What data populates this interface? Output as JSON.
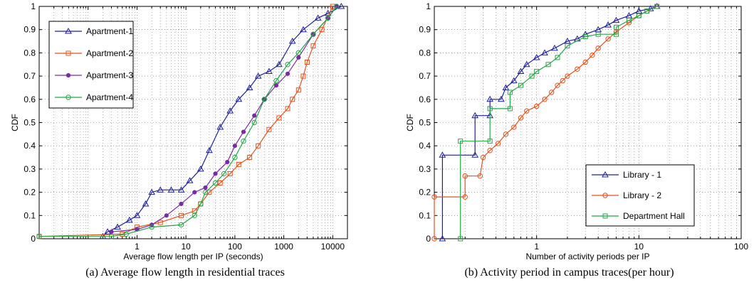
{
  "chart_data": [
    {
      "type": "line",
      "caption": "(a) Average flow length in residential traces",
      "xlabel": "Average flow length per IP (seconds)",
      "ylabel": "CDF",
      "xscale": "log",
      "xlim": [
        0.01,
        20000
      ],
      "ylim": [
        0,
        1
      ],
      "xticks": [
        1,
        10,
        100,
        1000,
        10000
      ],
      "xtick_labels": [
        "1",
        "10",
        "100",
        "1000",
        "10000"
      ],
      "yticks": [
        0,
        0.1,
        0.2,
        0.3,
        0.4,
        0.5,
        0.6,
        0.7,
        0.8,
        0.9,
        1
      ],
      "ytick_labels": [
        "0",
        "0.1",
        "0.2",
        "0.3",
        "0.4",
        "0.5",
        "0.6",
        "0.7",
        "0.8",
        "0.9",
        "1"
      ],
      "grid": true,
      "legend_position": "top-left",
      "series": [
        {
          "name": "Apartment-1",
          "color": "#1f1f9e",
          "marker": "triangle",
          "x": [
            0.2,
            0.25,
            0.4,
            0.7,
            1.0,
            1.5,
            2.0,
            3.0,
            5.0,
            8.0,
            12,
            20,
            30,
            50,
            80,
            120,
            200,
            300,
            500,
            800,
            1500,
            2500,
            5000,
            8000,
            15000
          ],
          "y": [
            0.01,
            0.03,
            0.05,
            0.08,
            0.1,
            0.15,
            0.2,
            0.21,
            0.21,
            0.21,
            0.25,
            0.3,
            0.38,
            0.48,
            0.55,
            0.6,
            0.65,
            0.7,
            0.72,
            0.75,
            0.85,
            0.9,
            0.95,
            0.97,
            1.0
          ]
        },
        {
          "name": "Apartment-2",
          "color": "#e8501c",
          "marker": "square",
          "x": [
            0.01,
            0.5,
            1.0,
            3.0,
            8.0,
            15,
            20,
            30,
            50,
            80,
            120,
            200,
            300,
            500,
            800,
            1200,
            1500,
            2000,
            2500,
            3000,
            4000,
            6000,
            10000
          ],
          "y": [
            0.01,
            0.02,
            0.05,
            0.07,
            0.1,
            0.12,
            0.15,
            0.2,
            0.24,
            0.28,
            0.32,
            0.35,
            0.4,
            0.47,
            0.52,
            0.56,
            0.6,
            0.64,
            0.7,
            0.76,
            0.83,
            0.9,
            1.0
          ]
        },
        {
          "name": "Apartment-3",
          "color": "#7a2aa8",
          "marker": "star",
          "x": [
            0.3,
            1.0,
            2.0,
            4.0,
            8.0,
            15,
            25,
            40,
            70,
            100,
            150,
            250,
            400,
            700,
            1200,
            2000,
            4000,
            8000,
            12000
          ],
          "y": [
            0.03,
            0.04,
            0.06,
            0.1,
            0.15,
            0.2,
            0.22,
            0.28,
            0.33,
            0.4,
            0.46,
            0.53,
            0.6,
            0.66,
            0.71,
            0.78,
            0.88,
            0.95,
            1.0
          ]
        },
        {
          "name": "Apartment-4",
          "color": "#22a845",
          "marker": "circle",
          "x": [
            0.01,
            0.3,
            0.6,
            2.0,
            8.0,
            15,
            20,
            25,
            40,
            60,
            100,
            150,
            250,
            400,
            700,
            1200,
            2000,
            4000,
            8000,
            12000
          ],
          "y": [
            0.01,
            0.01,
            0.02,
            0.05,
            0.06,
            0.1,
            0.15,
            0.2,
            0.24,
            0.28,
            0.35,
            0.42,
            0.5,
            0.6,
            0.68,
            0.75,
            0.8,
            0.88,
            0.95,
            1.0
          ]
        }
      ]
    },
    {
      "type": "line",
      "caption": "(b) Activity period in campus traces(per hour)",
      "xlabel": "Number of activity periods per IP",
      "ylabel": "CDF",
      "xscale": "log",
      "xlim": [
        0.1,
        100
      ],
      "ylim": [
        0,
        1
      ],
      "xticks": [
        1,
        10,
        100
      ],
      "xtick_labels": [
        "1",
        "10",
        "100"
      ],
      "yticks": [
        0,
        0.1,
        0.2,
        0.3,
        0.4,
        0.5,
        0.6,
        0.7,
        0.8,
        0.9,
        1
      ],
      "ytick_labels": [
        "0",
        "0.1",
        "0.2",
        "0.3",
        "0.4",
        "0.5",
        "0.6",
        "0.7",
        "0.8",
        "0.9",
        "1"
      ],
      "grid": true,
      "legend_position": "bottom-right",
      "series": [
        {
          "name": "Library - 1",
          "color": "#1f1f9e",
          "marker": "triangle",
          "x": [
            0.12,
            0.12,
            0.25,
            0.25,
            0.35,
            0.35,
            0.45,
            0.5,
            0.6,
            0.7,
            0.8,
            1.0,
            1.2,
            1.5,
            2.0,
            2.5,
            3.0,
            4.0,
            5.0,
            6.0,
            8.0,
            10,
            13,
            15
          ],
          "y": [
            0.0,
            0.36,
            0.36,
            0.53,
            0.53,
            0.6,
            0.6,
            0.65,
            0.68,
            0.72,
            0.75,
            0.78,
            0.8,
            0.82,
            0.85,
            0.86,
            0.88,
            0.9,
            0.92,
            0.94,
            0.96,
            0.98,
            0.99,
            1.0
          ]
        },
        {
          "name": "Library - 2",
          "color": "#e8501c",
          "marker": "circle",
          "x": [
            0.1,
            0.1,
            0.2,
            0.2,
            0.28,
            0.3,
            0.35,
            0.42,
            0.5,
            0.6,
            0.7,
            0.8,
            1.0,
            1.2,
            1.4,
            1.6,
            1.8,
            2.0,
            2.5,
            3.0,
            3.5,
            4.0,
            5.0,
            6.0,
            8.0,
            10,
            12,
            15
          ],
          "y": [
            0.0,
            0.18,
            0.18,
            0.27,
            0.27,
            0.35,
            0.38,
            0.41,
            0.45,
            0.48,
            0.52,
            0.55,
            0.57,
            0.6,
            0.63,
            0.66,
            0.68,
            0.7,
            0.73,
            0.76,
            0.79,
            0.82,
            0.86,
            0.89,
            0.93,
            0.96,
            0.98,
            1.0
          ]
        },
        {
          "name": "Department Hall",
          "color": "#22a845",
          "marker": "square",
          "x": [
            0.18,
            0.18,
            0.35,
            0.35,
            0.55,
            0.55,
            0.7,
            0.9,
            1.0,
            1.3,
            1.6,
            2.0,
            3.0,
            4.0,
            6.0,
            6.0,
            8.0,
            10,
            12,
            15
          ],
          "y": [
            0.0,
            0.42,
            0.42,
            0.56,
            0.56,
            0.63,
            0.66,
            0.7,
            0.72,
            0.75,
            0.78,
            0.83,
            0.87,
            0.88,
            0.88,
            0.91,
            0.94,
            0.96,
            0.98,
            1.0
          ]
        }
      ]
    }
  ]
}
